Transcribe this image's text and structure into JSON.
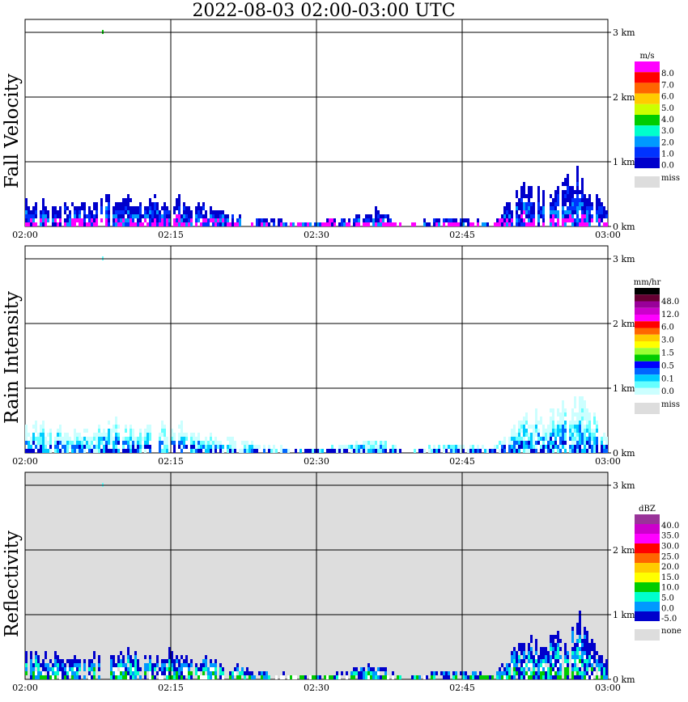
{
  "title": "2022-08-03   02:00-03:00 UTC",
  "x_ticks": [
    "02:00",
    "02:15",
    "02:30",
    "02:45",
    "03:00"
  ],
  "y_ticks": [
    "0 km",
    "1 km",
    "2 km",
    "3 km"
  ],
  "panels": [
    {
      "label": "Fall Velocity",
      "colorbar": {
        "unit": "m/s",
        "levels": [
          "8.0",
          "7.0",
          "6.0",
          "5.0",
          "4.0",
          "3.0",
          "2.0",
          "1.0",
          "0.0"
        ],
        "colors": [
          "#ff00ff",
          "#ff0000",
          "#ff6600",
          "#ffcc00",
          "#ccff00",
          "#00cc00",
          "#00ffcc",
          "#0099ff",
          "#0033ff",
          "#0000cc"
        ],
        "miss_label": "miss",
        "miss_color": "#dddddd"
      }
    },
    {
      "label": "Rain Intensity",
      "colorbar": {
        "unit": "mm/hr",
        "levels": [
          "48.0",
          "12.0",
          "6.0",
          "3.0",
          "1.5",
          "0.5",
          "0.1",
          "0.0"
        ],
        "colors": [
          "#000000",
          "#660033",
          "#990099",
          "#cc00cc",
          "#ff00ff",
          "#ff0000",
          "#ff6600",
          "#ffcc00",
          "#ffff00",
          "#99ff33",
          "#00cc00",
          "#0000ff",
          "#0066ff",
          "#00ccff",
          "#66ffff",
          "#ccffff"
        ],
        "miss_label": "miss",
        "miss_color": "#dddddd"
      }
    },
    {
      "label": "Reflectivity",
      "colorbar": {
        "unit": "dBZ",
        "levels": [
          "40.0",
          "35.0",
          "30.0",
          "25.0",
          "20.0",
          "15.0",
          "10.0",
          "5.0",
          "0.0",
          "-5.0"
        ],
        "colors": [
          "#993399",
          "#cc00cc",
          "#ff00ff",
          "#ff0000",
          "#ff6600",
          "#ffcc00",
          "#ffff00",
          "#00cc00",
          "#00ffcc",
          "#0099ff",
          "#0000cc"
        ],
        "miss_label": "none",
        "miss_color": "#dddddd"
      }
    }
  ],
  "chart_data": {
    "type": "heatmap",
    "title": "2022-08-03   02:00-03:00 UTC",
    "x_range": [
      "02:00",
      "03:00"
    ],
    "y_range_km": [
      0,
      3.5
    ],
    "grid": true,
    "echo_tops_km": {
      "time": [
        "02:00",
        "02:03",
        "02:06",
        "02:09",
        "02:12",
        "02:15",
        "02:18",
        "02:21",
        "02:24",
        "02:27",
        "02:30",
        "02:33",
        "02:36",
        "02:39",
        "02:42",
        "02:45",
        "02:48",
        "02:51",
        "02:54",
        "02:57",
        "02:59",
        "03:00"
      ],
      "top": [
        0.4,
        0.4,
        0.3,
        0.45,
        0.35,
        0.45,
        0.3,
        0.2,
        0.1,
        0.05,
        0.05,
        0.1,
        0.25,
        0.0,
        0.1,
        0.1,
        0.05,
        0.55,
        0.6,
        0.95,
        0.45,
        0.2
      ]
    }
  }
}
